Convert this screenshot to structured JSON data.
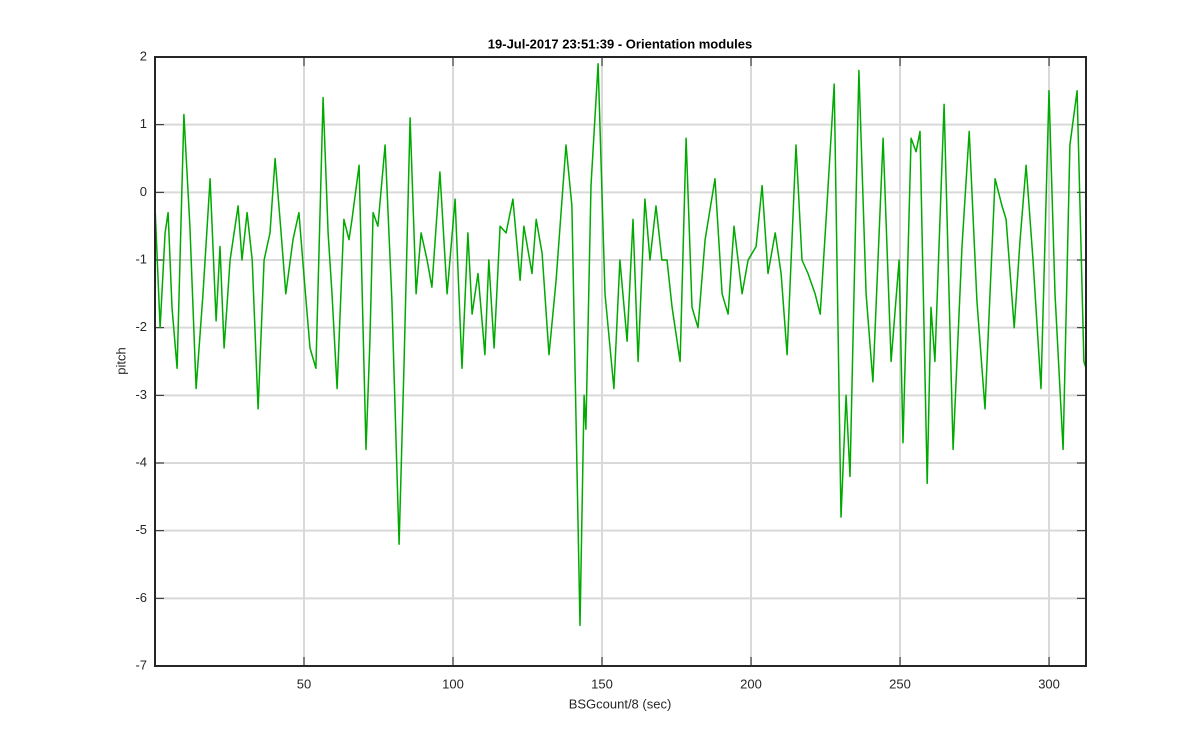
{
  "chart_data": {
    "type": "line",
    "title": "19-Jul-2017 23:51:39 - Orientation modules",
    "xlabel": "BSGcount/8 (sec)",
    "ylabel": "pitch",
    "color": "#00aa00",
    "grid": true,
    "xlim": [
      0,
      312.4
    ],
    "ylim": [
      -7,
      2
    ],
    "xticks": [
      50,
      100,
      150,
      200,
      250,
      300
    ],
    "yticks": [
      -7,
      -6,
      -5,
      -4,
      -3,
      -2,
      -1,
      0,
      1,
      2
    ],
    "x": [
      0,
      1.7,
      3.4,
      4.4,
      5.7,
      7.4,
      9.7,
      11.7,
      13.8,
      16.1,
      18.5,
      20.5,
      21.8,
      23.2,
      25.2,
      27.9,
      29.2,
      30.9,
      32.6,
      34.6,
      36.6,
      38.6,
      40.3,
      42.3,
      43.9,
      46.3,
      48.3,
      50.3,
      52,
      54,
      56.4,
      58.1,
      59.4,
      61.1,
      63.4,
      65.1,
      66.1,
      68.5,
      70.8,
      72.1,
      73.2,
      74.8,
      77.2,
      79.5,
      81.9,
      83.6,
      85.6,
      87.6,
      89.3,
      91.3,
      92.9,
      95.6,
      98,
      100.7,
      103,
      105,
      106.4,
      108.4,
      110.7,
      112,
      113.8,
      115.8,
      117.8,
      120.1,
      122.5,
      123.8,
      126.5,
      127.9,
      129.9,
      132.2,
      134.6,
      137.9,
      139.9,
      142.6,
      144,
      144.6,
      146.3,
      148.7,
      151,
      154,
      156,
      158.4,
      160.4,
      162.1,
      164.4,
      166.1,
      168.1,
      170.1,
      171.8,
      173.5,
      176.2,
      178.2,
      180.2,
      182.2,
      184.6,
      187.9,
      190.3,
      192.3,
      194.3,
      197,
      199,
      201.7,
      203.7,
      205.7,
      208.1,
      210.1,
      212.1,
      215.1,
      217.1,
      219.1,
      221.5,
      223.2,
      225.2,
      227.9,
      230.2,
      231.9,
      233.2,
      236.2,
      238.6,
      240.9,
      244.3,
      247,
      249.7,
      251,
      253.7,
      255.4,
      256.7,
      259.1,
      260.4,
      261.7,
      264.8,
      267.8,
      270.8,
      273.2,
      275.8,
      278.5,
      280.2,
      281.9,
      284.2,
      285.6,
      288.3,
      290.3,
      292.3,
      294.6,
      297.3,
      300,
      302,
      304.7,
      307,
      309.4,
      311.7,
      312.4
    ],
    "values": [
      -0.2,
      -2.0,
      -0.6,
      -0.3,
      -1.7,
      -2.6,
      1.15,
      -0.5,
      -2.9,
      -1.5,
      0.2,
      -1.9,
      -0.8,
      -2.3,
      -1.0,
      -0.2,
      -1.0,
      -0.3,
      -1.0,
      -3.2,
      -1.0,
      -0.6,
      0.5,
      -0.6,
      -1.5,
      -0.7,
      -0.3,
      -1.4,
      -2.3,
      -2.6,
      1.4,
      -0.6,
      -1.5,
      -2.9,
      -0.4,
      -0.7,
      -0.4,
      0.4,
      -3.8,
      -2.2,
      -0.3,
      -0.5,
      0.7,
      -1.6,
      -5.2,
      -2.5,
      1.1,
      -1.5,
      -0.6,
      -1.0,
      -1.4,
      0.3,
      -1.5,
      -0.1,
      -2.6,
      -0.6,
      -1.8,
      -1.2,
      -2.4,
      -1.0,
      -2.3,
      -0.5,
      -0.6,
      -0.1,
      -1.3,
      -0.5,
      -1.2,
      -0.4,
      -0.9,
      -2.4,
      -1.3,
      0.7,
      -0.2,
      -6.4,
      -3.0,
      -3.5,
      0.1,
      1.9,
      -1.5,
      -2.9,
      -1.0,
      -2.2,
      -0.4,
      -2.5,
      -0.1,
      -1.0,
      -0.2,
      -1.0,
      -1.0,
      -1.7,
      -2.5,
      0.8,
      -1.7,
      -2.0,
      -0.7,
      0.2,
      -1.5,
      -1.8,
      -0.5,
      -1.5,
      -1.0,
      -0.8,
      0.1,
      -1.2,
      -0.6,
      -1.2,
      -2.4,
      0.7,
      -1.0,
      -1.2,
      -1.5,
      -1.8,
      -0.4,
      1.6,
      -4.8,
      -3.0,
      -4.2,
      1.8,
      -1.5,
      -2.8,
      0.8,
      -2.5,
      -1.0,
      -3.7,
      0.8,
      0.6,
      0.9,
      -4.3,
      -1.7,
      -2.5,
      1.3,
      -3.8,
      -0.8,
      0.9,
      -1.6,
      -3.2,
      -1.5,
      0.2,
      -0.2,
      -0.4,
      -2.0,
      -0.7,
      0.4,
      -1.0,
      -2.9,
      1.5,
      -1.5,
      -3.8,
      0.7,
      1.5,
      -2.5,
      -2.6
    ]
  }
}
